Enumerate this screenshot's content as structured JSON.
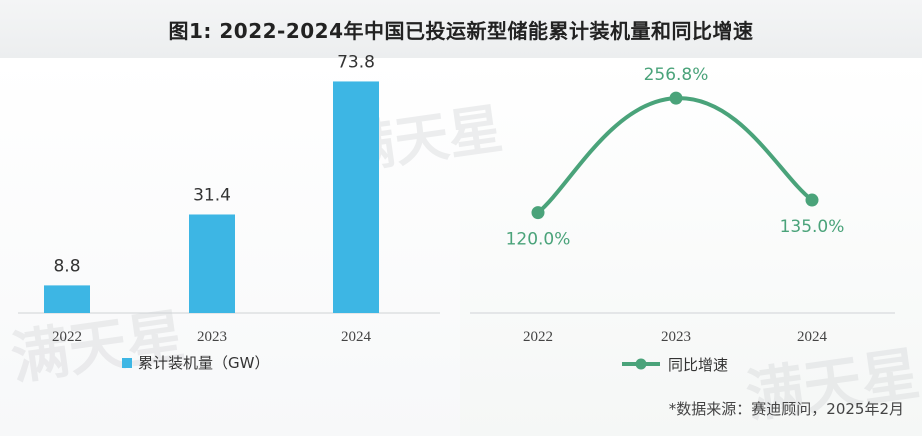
{
  "title": "图1:  2022-2024年中国已投运新型储能累计装机量和同比增速",
  "source": "*数据来源：赛迪顾问，2025年2月",
  "watermark": "满天星",
  "colors": {
    "bar": "#3db6e4",
    "line": "#4aa37a",
    "line_label": "#4aa37a",
    "text": "#333333"
  },
  "chart_data": [
    {
      "type": "bar",
      "categories": [
        "2022",
        "2023",
        "2024"
      ],
      "values": [
        8.8,
        31.4,
        73.8
      ],
      "data_labels": [
        "8.8",
        "31.4",
        "73.8"
      ],
      "series": [
        {
          "name": "累计装机量（GW）",
          "values": [
            8.8,
            31.4,
            73.8
          ]
        }
      ],
      "legend": "bottom-left",
      "ylim": [
        0,
        80
      ],
      "grid": false
    },
    {
      "type": "line",
      "categories": [
        "2022",
        "2023",
        "2024"
      ],
      "values": [
        120.0,
        256.8,
        135.0
      ],
      "data_labels": [
        "120.0%",
        "256.8%",
        "135.0%"
      ],
      "series": [
        {
          "name": "同比增速",
          "values": [
            120.0,
            256.8,
            135.0
          ]
        }
      ],
      "legend": "bottom-center",
      "ylim": [
        0,
        300
      ],
      "grid": false
    }
  ]
}
